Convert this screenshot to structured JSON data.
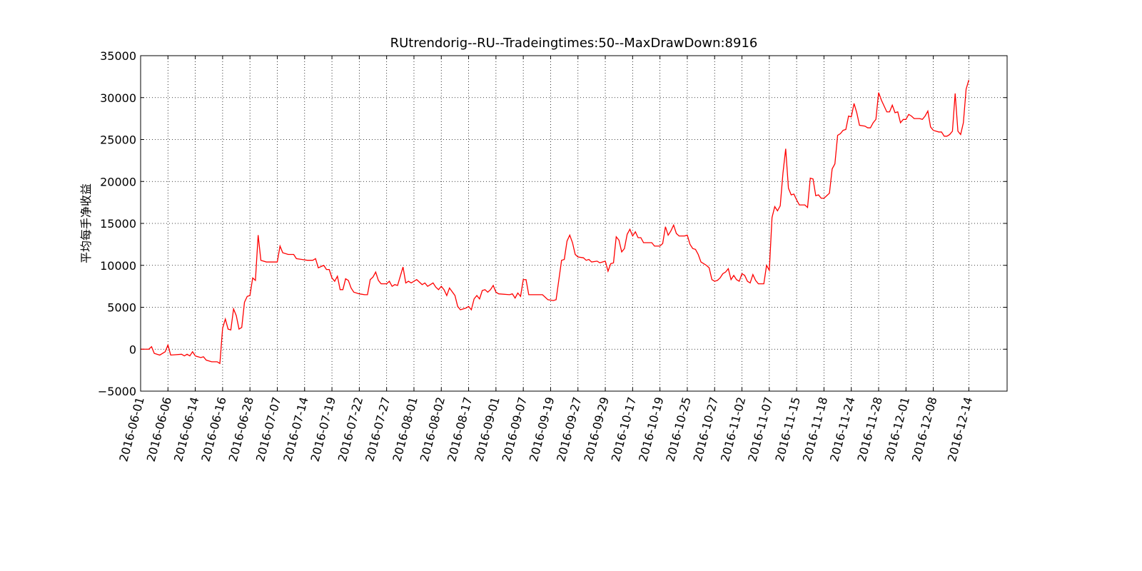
{
  "chart_data": {
    "type": "line",
    "title": "RUtrendorig--RU--Tradeingtimes:50--MaxDrawDown:8916",
    "y_label": "平均每手净收益",
    "color": "#ff0000",
    "grid": true,
    "xlim": [
      0,
      317
    ],
    "ylim": [
      -5000,
      35000
    ],
    "yticks": [
      {
        "value": -5000,
        "label": "−5000"
      },
      0,
      5000,
      10000,
      15000,
      20000,
      25000,
      30000,
      35000
    ],
    "xticks": [
      {
        "value": 0,
        "label": "2016-06-01"
      },
      {
        "value": 10,
        "label": "2016-06-06"
      },
      {
        "value": 20,
        "label": "2016-06-14"
      },
      {
        "value": 30,
        "label": "2016-06-16"
      },
      {
        "value": 40,
        "label": "2016-06-28"
      },
      {
        "value": 50,
        "label": "2016-07-07"
      },
      {
        "value": 60,
        "label": "2016-07-14"
      },
      {
        "value": 70,
        "label": "2016-07-19"
      },
      {
        "value": 80,
        "label": "2016-07-22"
      },
      {
        "value": 90,
        "label": "2016-07-27"
      },
      {
        "value": 100,
        "label": "2016-08-01"
      },
      {
        "value": 110,
        "label": "2016-08-02"
      },
      {
        "value": 120,
        "label": "2016-08-17"
      },
      {
        "value": 130,
        "label": "2016-09-01"
      },
      {
        "value": 140,
        "label": "2016-09-07"
      },
      {
        "value": 150,
        "label": "2016-09-19"
      },
      {
        "value": 160,
        "label": "2016-09-27"
      },
      {
        "value": 170,
        "label": "2016-09-29"
      },
      {
        "value": 180,
        "label": "2016-10-17"
      },
      {
        "value": 190,
        "label": "2016-10-19"
      },
      {
        "value": 200,
        "label": "2016-10-25"
      },
      {
        "value": 210,
        "label": "2016-10-27"
      },
      {
        "value": 220,
        "label": "2016-11-02"
      },
      {
        "value": 230,
        "label": "2016-11-07"
      },
      {
        "value": 240,
        "label": "2016-11-15"
      },
      {
        "value": 250,
        "label": "2016-11-18"
      },
      {
        "value": 260,
        "label": "2016-11-24"
      },
      {
        "value": 270,
        "label": "2016-11-28"
      },
      {
        "value": 280,
        "label": "2016-12-01"
      },
      {
        "value": 290,
        "label": "2016-12-08"
      },
      {
        "value": 303,
        "label": "2016-12-14"
      }
    ],
    "x": [
      0,
      3,
      4,
      5,
      7,
      9,
      10,
      11,
      15,
      16,
      17,
      18,
      19,
      20,
      22,
      23,
      24,
      26,
      28,
      29,
      30,
      31,
      32,
      33,
      34,
      35,
      36,
      37,
      38,
      39,
      40,
      41,
      42,
      43,
      44,
      46,
      48,
      50,
      51,
      52,
      54,
      56,
      57,
      59,
      61,
      63,
      64,
      65,
      67,
      68,
      69,
      70,
      71,
      72,
      73,
      74,
      75,
      76,
      77,
      78,
      80,
      82,
      83,
      84,
      85,
      86,
      87,
      88,
      90,
      91,
      92,
      93,
      94,
      96,
      97,
      98,
      99,
      101,
      103,
      104,
      105,
      107,
      108,
      109,
      110,
      111,
      112,
      113,
      115,
      116,
      117,
      119,
      120,
      121,
      122,
      123,
      124,
      125,
      126,
      127,
      128,
      129,
      130,
      131,
      135,
      136,
      137,
      138,
      139,
      140,
      141,
      142,
      145,
      147,
      148,
      149,
      151,
      152,
      154,
      155,
      156,
      157,
      158,
      159,
      160,
      162,
      163,
      164,
      165,
      167,
      168,
      170,
      171,
      172,
      173,
      174,
      175,
      176,
      177,
      178,
      179,
      180,
      181,
      182,
      183,
      184,
      187,
      188,
      190,
      191,
      192,
      193,
      194,
      195,
      196,
      197,
      199,
      200,
      201,
      202,
      203,
      204,
      205,
      207,
      208,
      209,
      210,
      211,
      212,
      213,
      214,
      215,
      216,
      217,
      218,
      219,
      220,
      221,
      222,
      223,
      224,
      225,
      226,
      228,
      229,
      230,
      231,
      232,
      233,
      234,
      235,
      236,
      237,
      238,
      239,
      240,
      241,
      243,
      244,
      245,
      246,
      247,
      248,
      249,
      250,
      251,
      252,
      253,
      254,
      255,
      256,
      257,
      258,
      259,
      260,
      261,
      262,
      263,
      265,
      266,
      267,
      268,
      269,
      270,
      271,
      272,
      273,
      274,
      275,
      276,
      277,
      278,
      279,
      280,
      281,
      282,
      283,
      285,
      286,
      287,
      288,
      289,
      290,
      291,
      292,
      293,
      294,
      295,
      296,
      297,
      298,
      299,
      300,
      301,
      302,
      303
    ],
    "values": [
      0,
      0,
      300,
      -500,
      -700,
      -300,
      500,
      -700,
      -600,
      -800,
      -600,
      -800,
      -300,
      -800,
      -1000,
      -900,
      -1300,
      -1500,
      -1500,
      -1700,
      2500,
      3600,
      2400,
      2300,
      4800,
      4000,
      2400,
      2600,
      5600,
      6300,
      6400,
      8500,
      8200,
      13600,
      10600,
      10400,
      10400,
      10400,
      12300,
      11500,
      11300,
      11300,
      10800,
      10700,
      10600,
      10600,
      10800,
      9700,
      10000,
      9500,
      9500,
      8500,
      8100,
      8700,
      7100,
      7100,
      8400,
      8200,
      7300,
      6800,
      6600,
      6500,
      6500,
      8300,
      8600,
      9200,
      8200,
      7800,
      7800,
      8100,
      7500,
      7700,
      7600,
      9800,
      7900,
      8100,
      7900,
      8300,
      7700,
      7900,
      7500,
      7900,
      7400,
      7100,
      7500,
      7100,
      6400,
      7300,
      6400,
      5100,
      4700,
      4900,
      5100,
      4700,
      6000,
      6400,
      6000,
      7000,
      7100,
      6800,
      7100,
      7600,
      6800,
      6600,
      6500,
      6600,
      6100,
      6700,
      6300,
      8300,
      8300,
      6500,
      6500,
      6500,
      6200,
      5900,
      5800,
      5900,
      10600,
      10700,
      12900,
      13600,
      12700,
      11300,
      11000,
      10900,
      10600,
      10700,
      10400,
      10500,
      10300,
      10500,
      9300,
      10200,
      10300,
      13400,
      13000,
      11600,
      12000,
      13700,
      14300,
      13500,
      14000,
      13300,
      13300,
      12700,
      12700,
      12300,
      12300,
      12600,
      14600,
      13600,
      14100,
      14800,
      13800,
      13500,
      13500,
      13600,
      12500,
      12000,
      11900,
      11300,
      10400,
      10000,
      9700,
      8300,
      8100,
      8200,
      8500,
      9000,
      9200,
      9600,
      8300,
      8800,
      8300,
      8100,
      9000,
      8800,
      8100,
      7900,
      8900,
      8200,
      7800,
      7800,
      10000,
      9400,
      15700,
      17000,
      16500,
      17100,
      21000,
      23900,
      19200,
      18400,
      18500,
      17800,
      17200,
      17200,
      16900,
      20400,
      20300,
      18300,
      18400,
      18000,
      18000,
      18300,
      18600,
      21500,
      22100,
      25500,
      25700,
      26100,
      26200,
      27800,
      27700,
      29300,
      28200,
      26700,
      26600,
      26400,
      26400,
      27000,
      27400,
      30600,
      29700,
      29000,
      28300,
      28300,
      29100,
      28200,
      28300,
      27000,
      27400,
      27400,
      28000,
      27800,
      27500,
      27500,
      27400,
      27800,
      28400,
      26500,
      26100,
      26000,
      25900,
      25900,
      25400,
      25400,
      25600,
      26000,
      30500,
      26000,
      25600,
      27000,
      31000,
      32100
    ]
  }
}
